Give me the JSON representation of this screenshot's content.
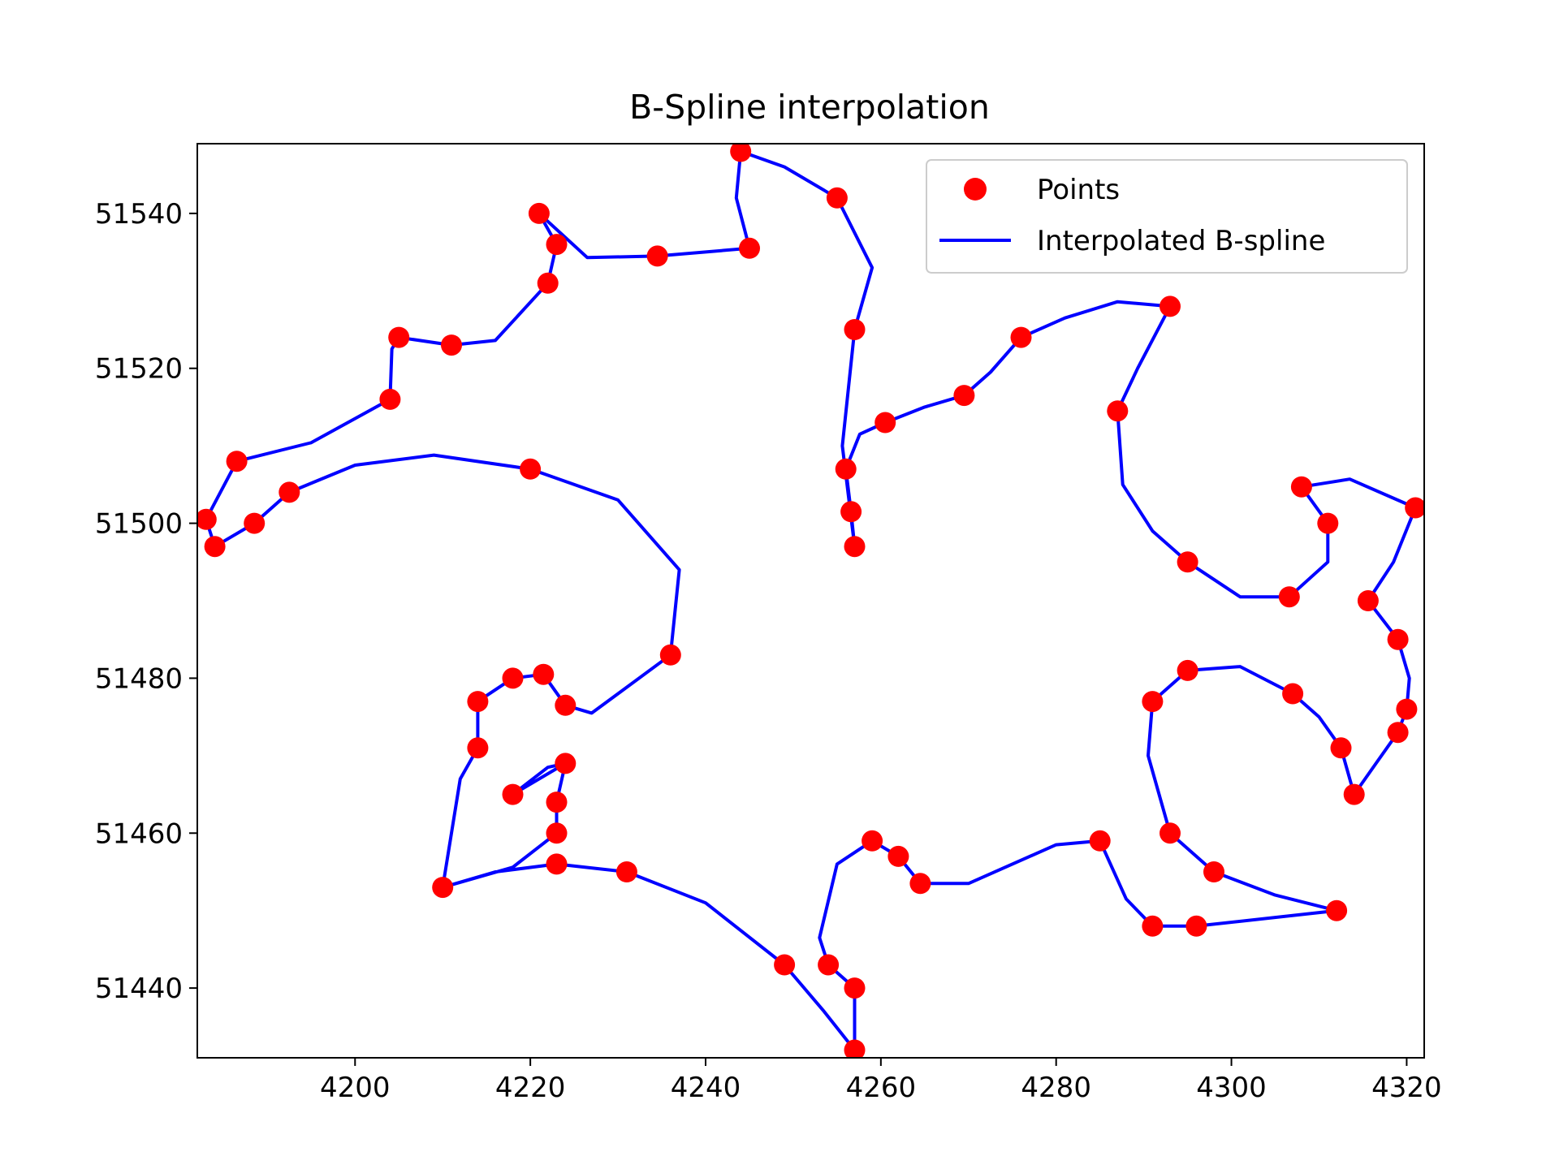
{
  "chart_data": {
    "type": "scatter",
    "title": "B-Spline interpolation",
    "xlabel": "",
    "ylabel": "",
    "xlim": [
      4182,
      4322
    ],
    "ylim": [
      51431,
      51549
    ],
    "xticks": [
      4200,
      4220,
      4240,
      4260,
      4280,
      4300,
      4320
    ],
    "yticks": [
      51440,
      51460,
      51480,
      51500,
      51520,
      51540
    ],
    "grid": false,
    "legend_position": "top-right",
    "colors": {
      "points": "#ff0000",
      "spline": "#0000ff"
    },
    "series": [
      {
        "name": "Points",
        "kind": "scatter",
        "points": [
          [
            4257,
            51497
          ],
          [
            4256.6,
            51501.5
          ],
          [
            4256,
            51507
          ],
          [
            4260.5,
            51513
          ],
          [
            4269.5,
            51516.5
          ],
          [
            4276,
            51524
          ],
          [
            4293,
            51528
          ],
          [
            4287,
            51514.5
          ],
          [
            4295,
            51495
          ],
          [
            4306.6,
            51490.5
          ],
          [
            4311,
            51500
          ],
          [
            4308,
            51504.7
          ],
          [
            4321,
            51502
          ],
          [
            4315.6,
            51490
          ],
          [
            4319,
            51485
          ],
          [
            4320,
            51476
          ],
          [
            4319,
            51473
          ],
          [
            4314,
            51465
          ],
          [
            4312.5,
            51471
          ],
          [
            4307,
            51478
          ],
          [
            4295,
            51481
          ],
          [
            4291,
            51477
          ],
          [
            4293,
            51460
          ],
          [
            4298,
            51455
          ],
          [
            4312,
            51450
          ],
          [
            4296,
            51448
          ],
          [
            4291,
            51448
          ],
          [
            4285,
            51459
          ],
          [
            4264.5,
            51453.5
          ],
          [
            4262,
            51457
          ],
          [
            4259,
            51459
          ],
          [
            4257,
            51440
          ],
          [
            4254,
            51443
          ],
          [
            4257,
            51432
          ],
          [
            4249,
            51443
          ],
          [
            4231,
            51455
          ],
          [
            4223,
            51456
          ],
          [
            4210,
            51453
          ],
          [
            4223,
            51460
          ],
          [
            4223,
            51464
          ],
          [
            4224,
            51469
          ],
          [
            4218,
            51465
          ],
          [
            4214,
            51471
          ],
          [
            4214,
            51477
          ],
          [
            4218,
            51480
          ],
          [
            4221.5,
            51480.5
          ],
          [
            4224,
            51476.5
          ],
          [
            4236,
            51483
          ],
          [
            4220,
            51507
          ],
          [
            4192.5,
            51504
          ],
          [
            4188.5,
            51500
          ],
          [
            4184,
            51497
          ],
          [
            4183,
            51500.5
          ],
          [
            4186.5,
            51508
          ],
          [
            4204,
            51516
          ],
          [
            4205,
            51524
          ],
          [
            4211,
            51523
          ],
          [
            4222,
            51531
          ],
          [
            4223,
            51536
          ],
          [
            4221,
            51540
          ],
          [
            4234.5,
            51534.5
          ],
          [
            4245,
            51535.5
          ],
          [
            4244,
            51548
          ],
          [
            4255,
            51542
          ],
          [
            4257,
            51525
          ]
        ]
      },
      {
        "name": "Interpolated B-spline",
        "kind": "line",
        "points": [
          [
            4257,
            51497
          ],
          [
            4256.6,
            51501.5
          ],
          [
            4256,
            51507
          ],
          [
            4257.6,
            51511.5
          ],
          [
            4260.5,
            51513
          ],
          [
            4265,
            51515
          ],
          [
            4269.5,
            51516.5
          ],
          [
            4272.5,
            51519.5
          ],
          [
            4276,
            51524
          ],
          [
            4281,
            51526.5
          ],
          [
            4287,
            51528.6
          ],
          [
            4293,
            51528
          ],
          [
            4289.3,
            51520
          ],
          [
            4287,
            51514.5
          ],
          [
            4287.6,
            51505
          ],
          [
            4291,
            51499
          ],
          [
            4295,
            51495
          ],
          [
            4301,
            51490.5
          ],
          [
            4306.6,
            51490.5
          ],
          [
            4311,
            51495
          ],
          [
            4311,
            51500
          ],
          [
            4308,
            51504.7
          ],
          [
            4313.5,
            51505.7
          ],
          [
            4321,
            51502
          ],
          [
            4318.5,
            51495
          ],
          [
            4315.6,
            51490
          ],
          [
            4319,
            51485
          ],
          [
            4320.3,
            51480
          ],
          [
            4320,
            51476
          ],
          [
            4319,
            51473
          ],
          [
            4316.5,
            51469
          ],
          [
            4314,
            51465
          ],
          [
            4312.5,
            51471
          ],
          [
            4310,
            51475
          ],
          [
            4307,
            51478
          ],
          [
            4301,
            51481.5
          ],
          [
            4295,
            51481
          ],
          [
            4291,
            51477
          ],
          [
            4290.5,
            51470
          ],
          [
            4293,
            51460
          ],
          [
            4298,
            51455
          ],
          [
            4305,
            51452
          ],
          [
            4312,
            51450
          ],
          [
            4296,
            51448
          ],
          [
            4291,
            51448
          ],
          [
            4288,
            51451.5
          ],
          [
            4285,
            51459
          ],
          [
            4280,
            51458.5
          ],
          [
            4270,
            51453.5
          ],
          [
            4264.5,
            51453.5
          ],
          [
            4262,
            51457
          ],
          [
            4259,
            51459
          ],
          [
            4255,
            51456
          ],
          [
            4253,
            51446.5
          ],
          [
            4254,
            51443
          ],
          [
            4257,
            51440
          ],
          [
            4257,
            51432
          ],
          [
            4253.5,
            51437
          ],
          [
            4249,
            51443
          ],
          [
            4240,
            51451
          ],
          [
            4231,
            51455
          ],
          [
            4223,
            51456
          ],
          [
            4216,
            51455
          ],
          [
            4210,
            51453
          ],
          [
            4218,
            51455.6
          ],
          [
            4223,
            51460
          ],
          [
            4223,
            51464
          ],
          [
            4224,
            51469
          ],
          [
            4218,
            51465
          ],
          [
            4222,
            51468.5
          ],
          [
            4224,
            51469
          ],
          [
            4223,
            51464
          ],
          [
            4223,
            51460
          ],
          [
            4218,
            51455.6
          ],
          [
            4210,
            51453
          ],
          [
            4212,
            51467
          ],
          [
            4214,
            51471
          ],
          [
            4214,
            51477
          ],
          [
            4218,
            51480
          ],
          [
            4221.5,
            51480.5
          ],
          [
            4224,
            51476.5
          ],
          [
            4227,
            51475.5
          ],
          [
            4236,
            51483
          ],
          [
            4237,
            51494
          ],
          [
            4230,
            51503
          ],
          [
            4220,
            51507
          ],
          [
            4209,
            51508.8
          ],
          [
            4200,
            51507.5
          ],
          [
            4192.5,
            51504
          ],
          [
            4188.5,
            51500
          ],
          [
            4184,
            51497
          ],
          [
            4183,
            51500.5
          ],
          [
            4186.5,
            51508
          ],
          [
            4195,
            51510.4
          ],
          [
            4204,
            51516
          ],
          [
            4204.2,
            51522.5
          ],
          [
            4205,
            51524
          ],
          [
            4211,
            51523
          ],
          [
            4216,
            51523.6
          ],
          [
            4222,
            51531
          ],
          [
            4223,
            51536
          ],
          [
            4221,
            51540
          ],
          [
            4226.5,
            51534.3
          ],
          [
            4234.5,
            51534.5
          ],
          [
            4245,
            51535.5
          ],
          [
            4243.5,
            51542
          ],
          [
            4244,
            51548
          ],
          [
            4249,
            51546
          ],
          [
            4255,
            51542
          ],
          [
            4259,
            51533
          ],
          [
            4257,
            51525
          ],
          [
            4255.6,
            51510
          ],
          [
            4257,
            51497
          ]
        ]
      }
    ]
  }
}
